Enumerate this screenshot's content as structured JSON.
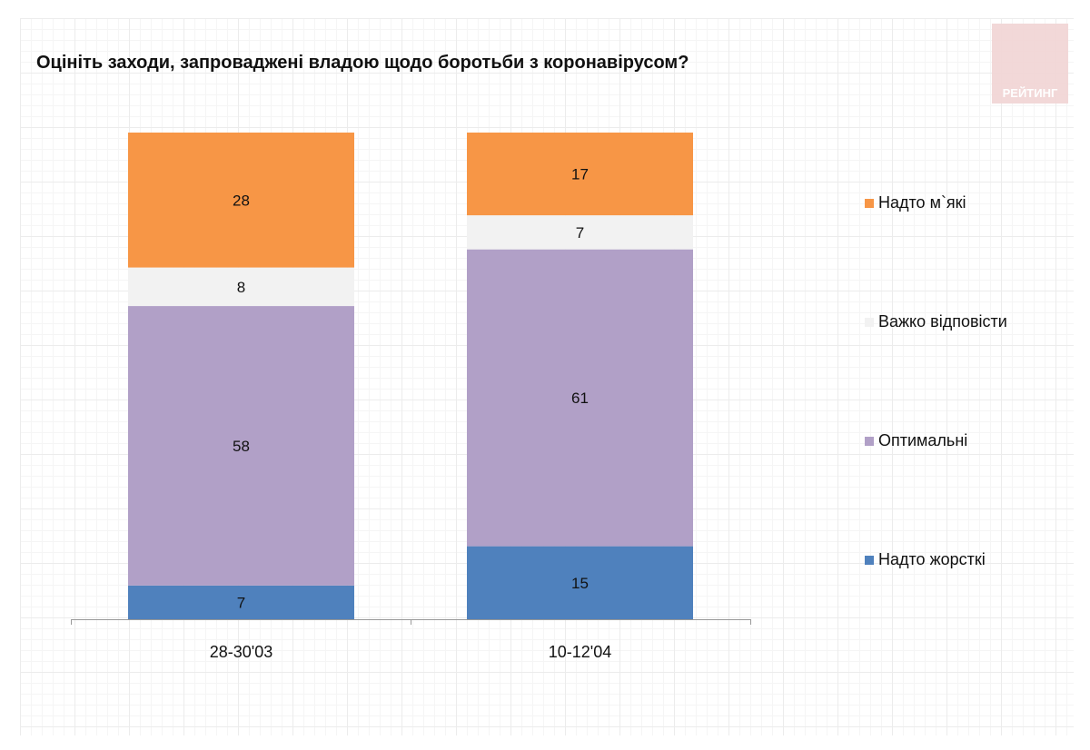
{
  "chart_data": {
    "type": "bar",
    "stacked": true,
    "title": "Оцініть заходи, запроваджені владою щодо боротьби з коронавірусом?",
    "categories": [
      "28-30'03",
      "10-12'04"
    ],
    "series": [
      {
        "name": "Надто жорсткі",
        "color": "#4f81bd",
        "values": [
          7,
          15
        ]
      },
      {
        "name": "Оптимальні",
        "color": "#b1a0c7",
        "values": [
          58,
          61
        ]
      },
      {
        "name": "Важко відповісти",
        "color": "#f2f2f2",
        "values": [
          8,
          7
        ]
      },
      {
        "name": "Надто м`які",
        "color": "#f79646",
        "values": [
          28,
          17
        ]
      }
    ],
    "legend": "right",
    "grid": false
  },
  "logo": "РЕЙТИНГ"
}
